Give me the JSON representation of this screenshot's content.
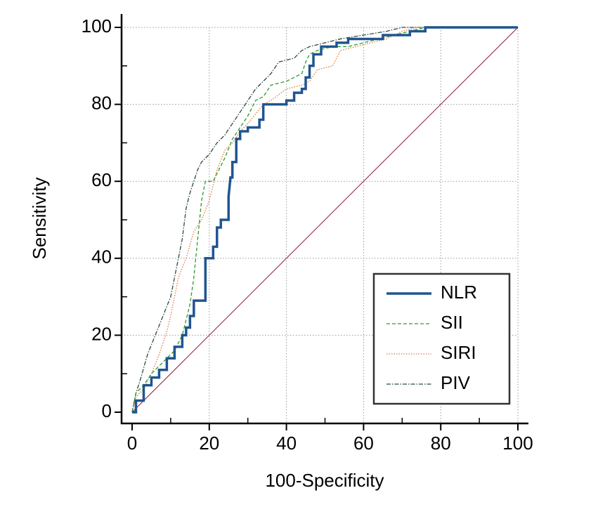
{
  "chart_data": {
    "type": "line",
    "xlabel": "100-Specificity",
    "ylabel": "Sensitivity",
    "xlim": [
      0,
      100
    ],
    "ylim": [
      0,
      100
    ],
    "xticks": [
      0,
      20,
      40,
      60,
      80,
      100
    ],
    "yticks": [
      0,
      20,
      40,
      60,
      80,
      100
    ],
    "grid": true,
    "legend": "lower right",
    "series": [
      {
        "name": "NLR",
        "color": "#1f5591",
        "style": "solid",
        "x": [
          0,
          1,
          1,
          3,
          3,
          5,
          5,
          7,
          7,
          9,
          9,
          11,
          11,
          13,
          13,
          14,
          14,
          15,
          15,
          16,
          16,
          19,
          19,
          21,
          21,
          22,
          22,
          23,
          23,
          25,
          25,
          25.5,
          26,
          26,
          27,
          27,
          28,
          28,
          30,
          30,
          33,
          33,
          34,
          34,
          40,
          40,
          42,
          42,
          44,
          44,
          45,
          45,
          46,
          46,
          47,
          47,
          49,
          49,
          53,
          53,
          56,
          56,
          65,
          65,
          72,
          72,
          76,
          76,
          100
        ],
        "values": [
          0,
          0,
          3,
          3,
          7,
          7,
          9,
          9,
          11,
          11,
          14,
          14,
          17,
          17,
          20,
          20,
          22,
          22,
          25,
          25,
          29,
          29,
          40,
          40,
          43,
          43,
          48,
          48,
          50,
          50,
          56,
          61,
          61,
          65,
          65,
          71,
          71,
          73,
          73,
          74,
          74,
          76,
          76,
          80,
          80,
          81,
          81,
          83,
          83,
          84,
          84,
          87,
          87,
          90,
          90,
          93,
          93,
          95,
          95,
          96,
          96,
          97,
          97,
          98,
          98,
          99,
          99,
          100,
          100
        ]
      },
      {
        "name": "SII",
        "color": "#2e9a2e",
        "style": "dashed",
        "x": [
          0,
          1,
          3,
          5,
          7,
          9,
          11,
          13,
          15,
          16,
          17,
          18,
          19,
          21,
          22,
          24,
          26,
          28,
          30,
          32,
          34,
          36,
          40,
          42,
          44,
          45,
          46,
          48,
          52,
          56,
          60,
          64,
          68,
          72,
          76,
          100
        ],
        "values": [
          0,
          5,
          7,
          10,
          12,
          14,
          16,
          20,
          28,
          35,
          45,
          55,
          60,
          60,
          62,
          66,
          71,
          74,
          77,
          81,
          82,
          85,
          86,
          87,
          88,
          91,
          93,
          94,
          95,
          95,
          96,
          97,
          98,
          99,
          100,
          100
        ]
      },
      {
        "name": "SIRI",
        "color": "#e07a3a",
        "style": "dotted",
        "x": [
          0,
          1,
          3,
          5,
          7,
          9,
          10,
          11,
          12,
          14,
          16,
          18,
          20,
          22,
          24,
          26,
          28,
          30,
          34,
          36,
          40,
          44,
          46,
          48,
          52,
          54,
          58,
          62,
          66,
          70,
          74,
          100
        ],
        "values": [
          0,
          4,
          6,
          10,
          15,
          21,
          25,
          30,
          35,
          40,
          47,
          50,
          55,
          63,
          68,
          70,
          73,
          75,
          80,
          81,
          84,
          85,
          86,
          89,
          90,
          94,
          95,
          96,
          97,
          99,
          100,
          100
        ]
      },
      {
        "name": "PIV",
        "color": "#2f4a3a",
        "style": "dashdot",
        "x": [
          0,
          1,
          2,
          4,
          6,
          8,
          10,
          11,
          12,
          13,
          14,
          15,
          16,
          17,
          18,
          20,
          22,
          24,
          26,
          28,
          30,
          32,
          34,
          36,
          38,
          42,
          44,
          46,
          50,
          54,
          60,
          66,
          70,
          100
        ],
        "values": [
          0,
          5,
          8,
          15,
          20,
          25,
          30,
          35,
          40,
          45,
          53,
          57,
          60,
          63,
          65,
          67,
          70,
          72,
          75,
          78,
          81,
          84,
          86,
          88,
          91,
          92,
          94,
          95,
          96,
          97,
          98,
          99,
          100,
          100
        ]
      }
    ]
  }
}
